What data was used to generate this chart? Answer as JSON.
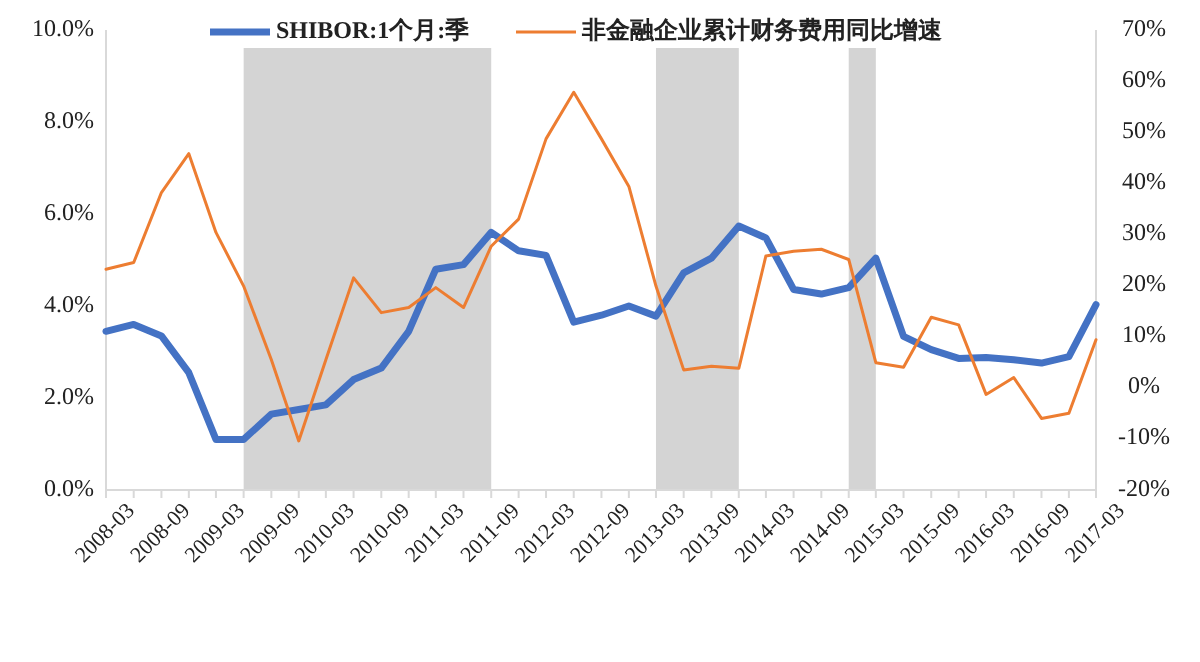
{
  "chart_data": {
    "type": "line",
    "x": [
      "2008-03",
      "2008-06",
      "2008-09",
      "2008-12",
      "2009-03",
      "2009-06",
      "2009-09",
      "2009-12",
      "2010-03",
      "2010-06",
      "2010-09",
      "2010-12",
      "2011-03",
      "2011-06",
      "2011-09",
      "2011-12",
      "2012-03",
      "2012-06",
      "2012-09",
      "2012-12",
      "2013-03",
      "2013-06",
      "2013-09",
      "2013-12",
      "2014-03",
      "2014-06",
      "2014-09",
      "2014-12",
      "2015-03",
      "2015-06",
      "2015-09",
      "2015-12",
      "2016-03",
      "2016-06",
      "2016-09",
      "2016-12",
      "2017-03"
    ],
    "xlim": [
      "2008-03",
      "2017-03"
    ],
    "xticks": [
      "2008-03",
      {
        "value": "2008-06",
        "label": null
      },
      "2008-09",
      {
        "value": "2008-12",
        "label": null
      },
      "2009-03",
      {
        "value": "2009-06",
        "label": null
      },
      "2009-09",
      {
        "value": "2009-12",
        "label": null
      },
      "2010-03",
      {
        "value": "2010-06",
        "label": null
      },
      "2010-09",
      {
        "value": "2010-12",
        "label": null
      },
      "2011-03",
      {
        "value": "2011-06",
        "label": null
      },
      "2011-09",
      {
        "value": "2011-12",
        "label": null
      },
      "2012-03",
      {
        "value": "2012-06",
        "label": null
      },
      "2012-09",
      {
        "value": "2012-12",
        "label": null
      },
      "2013-03",
      {
        "value": "2013-06",
        "label": null
      },
      "2013-09",
      {
        "value": "2013-12",
        "label": null
      },
      "2014-03",
      {
        "value": "2014-06",
        "label": null
      },
      "2014-09",
      {
        "value": "2014-12",
        "label": null
      },
      "2015-03",
      {
        "value": "2015-06",
        "label": null
      },
      "2015-09",
      {
        "value": "2015-12",
        "label": null
      },
      "2016-03",
      {
        "value": "2016-06",
        "label": null
      },
      "2016-09",
      {
        "value": "2016-12",
        "label": null
      },
      "2017-03"
    ],
    "series": [
      {
        "name": "SHIBOR:1个月:季",
        "color": "#4472c4",
        "values": [
          3.45,
          3.6,
          3.35,
          2.55,
          1.1,
          1.1,
          1.65,
          1.75,
          1.85,
          2.4,
          2.65,
          3.45,
          4.8,
          4.9,
          5.6,
          5.2,
          5.1,
          3.65,
          3.8,
          4.0,
          3.78,
          4.72,
          5.04,
          5.74,
          5.48,
          4.36,
          4.26,
          4.4,
          5.04,
          3.34,
          3.05,
          2.86,
          2.88,
          2.83,
          2.76,
          2.9,
          4.03
        ]
      },
      {
        "name": "非金融企业累计财务费用同比增速",
        "color": "#ed7d31",
        "axis": "y2",
        "values": [
          23.2,
          24.5,
          38.2,
          45.8,
          30.4,
          19.9,
          5.5,
          -10.4,
          5.5,
          21.5,
          14.7,
          15.7,
          19.6,
          15.7,
          27.7,
          33,
          48.7,
          57.8,
          48.7,
          39.4,
          19.9,
          3.5,
          4.2,
          3.8,
          25.8,
          26.7,
          27.1,
          25.1,
          4.9,
          4.0,
          13.8,
          12.3,
          -1.3,
          2.0,
          -6.0,
          -5.0,
          9.4
        ]
      }
    ],
    "ylim": [
      0,
      10
    ],
    "yticks": [
      {
        "value": 0,
        "label": "0.0%"
      },
      {
        "value": 2,
        "label": "2.0%"
      },
      {
        "value": 4,
        "label": "4.0%"
      },
      {
        "value": 6,
        "label": "6.0%"
      },
      {
        "value": 8,
        "label": "8.0%"
      },
      {
        "value": 10,
        "label": "10.0%"
      }
    ],
    "y2lim": [
      -20,
      70
    ],
    "y2ticks": [
      {
        "value": -20,
        "label": "-20%"
      },
      {
        "value": -10,
        "label": "-10%"
      },
      {
        "value": 0,
        "label": "0%"
      },
      {
        "value": 10,
        "label": "10%"
      },
      {
        "value": 20,
        "label": "20%"
      },
      {
        "value": 30,
        "label": "30%"
      },
      {
        "value": 40,
        "label": "40%"
      },
      {
        "value": 50,
        "label": "50%"
      },
      {
        "value": 60,
        "label": "60%"
      },
      {
        "value": 70,
        "label": "70%"
      }
    ],
    "bands": [
      {
        "axis": "x",
        "from": "2009-06",
        "to": "2011-09",
        "color": "#d4d4d4"
      },
      {
        "axis": "x",
        "from": "2013-03",
        "to": "2013-12",
        "color": "#d4d4d4"
      },
      {
        "axis": "x",
        "from": "2014-12",
        "to": "2015-03",
        "color": "#d4d4d4"
      }
    ],
    "legend": "top",
    "grid": false
  }
}
